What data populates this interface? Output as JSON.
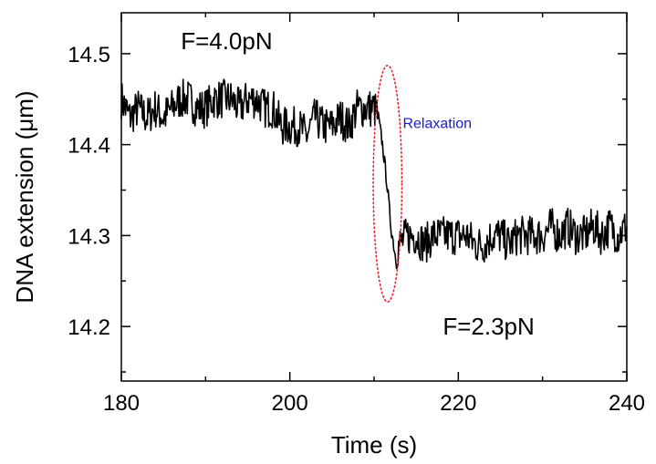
{
  "chart_data": {
    "type": "line",
    "xlabel": "Time (s)",
    "ylabel": "DNA extension (μm)",
    "xlim": [
      180,
      240
    ],
    "ylim": [
      14.14,
      14.545
    ],
    "xticks": [
      180,
      200,
      220,
      240
    ],
    "xticks_minor": [
      190,
      210,
      230
    ],
    "yticks": [
      14.2,
      14.3,
      14.4,
      14.5
    ],
    "yticks_minor": [
      14.15,
      14.25,
      14.35,
      14.45
    ],
    "xtick_labels": [
      "180",
      "200",
      "220",
      "240"
    ],
    "ytick_labels": [
      "14.2",
      "14.3",
      "14.4",
      "14.5"
    ],
    "grid": false,
    "legend": "none",
    "series": [
      {
        "color": "#000000",
        "x": [
          180.0,
          181.0,
          182.0,
          183.0,
          184.0,
          185.0,
          186.0,
          187.0,
          188.0,
          189.0,
          190.0,
          191.0,
          192.0,
          193.0,
          194.0,
          195.0,
          196.0,
          197.0,
          198.0,
          199.0,
          200.0,
          201.0,
          202.0,
          203.0,
          204.0,
          205.0,
          206.0,
          207.0,
          208.0,
          209.0,
          210.0,
          210.5,
          211.0,
          211.5,
          212.0,
          212.5,
          213.0,
          214.0,
          215.0,
          216.0,
          217.0,
          218.0,
          219.0,
          220.0,
          221.0,
          222.0,
          223.0,
          224.0,
          225.0,
          226.0,
          227.0,
          228.0,
          229.0,
          230.0,
          231.0,
          232.0,
          233.0,
          234.0,
          235.0,
          236.0,
          237.0,
          238.0,
          239.0,
          240.0
        ],
        "y": [
          14.45,
          14.43,
          14.44,
          14.43,
          14.44,
          14.43,
          14.44,
          14.45,
          14.45,
          14.44,
          14.44,
          14.45,
          14.45,
          14.45,
          14.44,
          14.45,
          14.45,
          14.44,
          14.44,
          14.42,
          14.42,
          14.42,
          14.41,
          14.43,
          14.42,
          14.42,
          14.43,
          14.42,
          14.44,
          14.44,
          14.44,
          14.43,
          14.4,
          14.36,
          14.31,
          14.28,
          14.29,
          14.3,
          14.3,
          14.29,
          14.3,
          14.3,
          14.3,
          14.3,
          14.3,
          14.29,
          14.29,
          14.3,
          14.3,
          14.29,
          14.3,
          14.3,
          14.3,
          14.3,
          14.31,
          14.3,
          14.31,
          14.3,
          14.3,
          14.31,
          14.3,
          14.31,
          14.3,
          14.31
        ]
      }
    ],
    "annotations": [
      {
        "text": "F=4.0pN",
        "x": 192.5,
        "y": 14.514,
        "color": "#000000"
      },
      {
        "text": "Relaxation",
        "x": 217.5,
        "y": 14.427,
        "color": "#1a1acc"
      },
      {
        "text": "F=2.3pN",
        "x": 223.6,
        "y": 14.2,
        "color": "#000000"
      }
    ],
    "highlight_ellipse": {
      "cx": 211.6,
      "cy": 14.357,
      "rx": 1.7,
      "ry": 0.13,
      "color": "#e8242c",
      "style": "dotted"
    }
  }
}
